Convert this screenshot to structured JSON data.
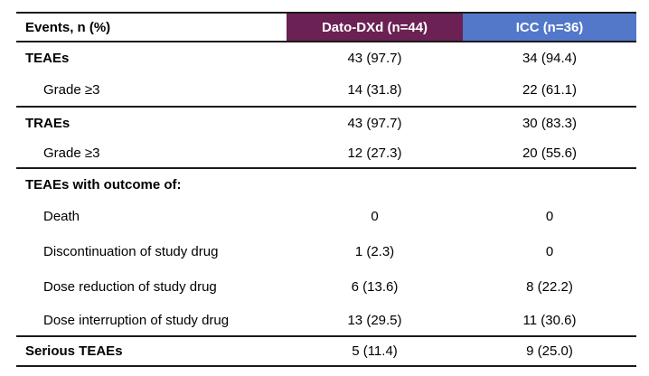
{
  "table": {
    "header": {
      "events_col": "Events, n (%)",
      "dato_col": "Dato-DXd (n=44)",
      "icc_col": "ICC (n=36)"
    },
    "colors": {
      "dato_header_bg": "#6B2154",
      "icc_header_bg": "#5377C9",
      "header_text": "#FFFFFF",
      "rule": "#1A1A1A",
      "body_text": "#000000"
    },
    "rows": [
      {
        "label": "TEAEs",
        "style": "section",
        "dato": "43 (97.7)",
        "icc": "34 (94.4)"
      },
      {
        "label": "Grade ≥3",
        "style": "sub",
        "dato": "14 (31.8)",
        "icc": "22 (61.1)"
      },
      {
        "label": "TRAEs",
        "style": "section",
        "dato": "43 (97.7)",
        "icc": "30 (83.3)"
      },
      {
        "label": "Grade ≥3",
        "style": "sub",
        "dato": "12 (27.3)",
        "icc": "20 (55.6)"
      },
      {
        "label": "TEAEs with outcome of:",
        "style": "section",
        "dato": "",
        "icc": ""
      },
      {
        "label": "Death",
        "style": "sub",
        "dato": "0",
        "icc": "0"
      },
      {
        "label": "Discontinuation of study drug",
        "style": "sub",
        "dato": "1 (2.3)",
        "icc": "0"
      },
      {
        "label": "Dose reduction of study drug",
        "style": "sub",
        "dato": "6 (13.6)",
        "icc": "8 (22.2)"
      },
      {
        "label": "Dose interruption of study drug",
        "style": "sub",
        "dato": "13 (29.5)",
        "icc": "11 (30.6)"
      },
      {
        "label": "Serious TEAEs",
        "style": "section",
        "dato": "5 (11.4)",
        "icc": "9 (25.0)"
      }
    ]
  }
}
